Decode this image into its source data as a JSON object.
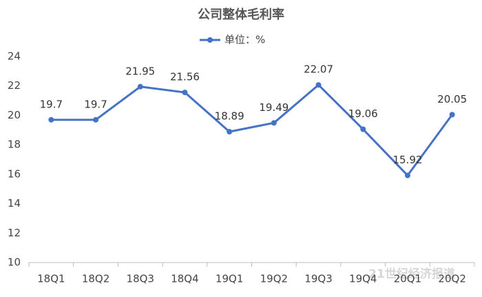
{
  "chart_data": {
    "type": "line",
    "title": "公司整体毛利率",
    "categories": [
      "18Q1",
      "18Q2",
      "18Q3",
      "18Q4",
      "19Q1",
      "19Q2",
      "19Q3",
      "19Q4",
      "20Q1",
      "20Q2"
    ],
    "series": [
      {
        "name": "单位：%",
        "color": "#4472c4",
        "values": [
          19.7,
          19.7,
          21.95,
          21.56,
          18.89,
          19.49,
          22.07,
          19.06,
          15.92,
          20.05
        ]
      }
    ],
    "ylim": [
      10,
      24
    ],
    "yticks": [
      10,
      12,
      14,
      16,
      18,
      20,
      22,
      24
    ],
    "grid": false,
    "legend": "top",
    "watermark": "21世纪经济报道"
  }
}
